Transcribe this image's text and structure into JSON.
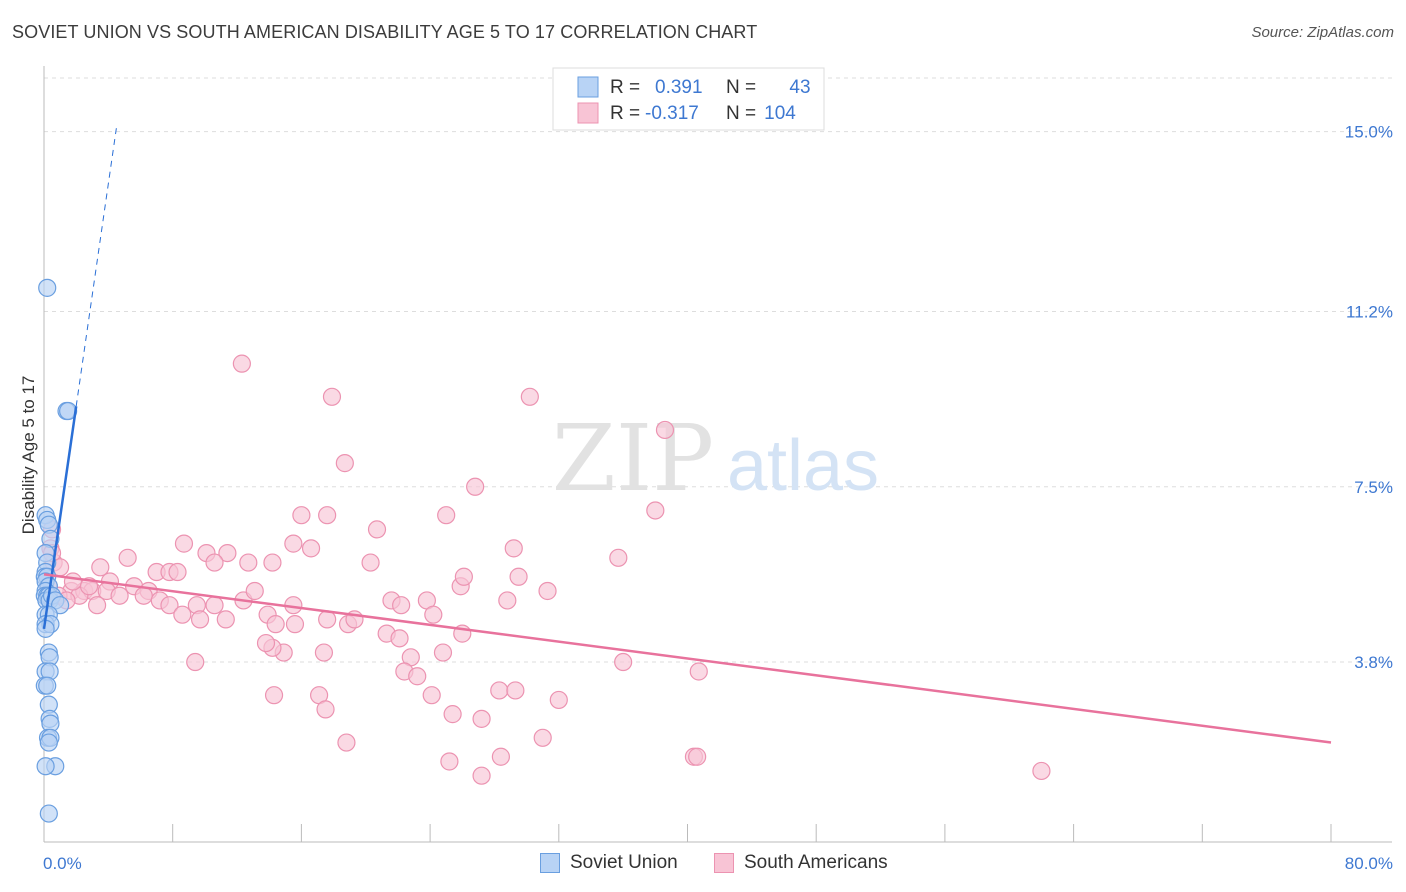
{
  "title": "SOVIET UNION VS SOUTH AMERICAN DISABILITY AGE 5 TO 17 CORRELATION CHART",
  "source": "Source: ZipAtlas.com",
  "watermark": {
    "zip": "ZIP",
    "atlas": "atlas"
  },
  "colors": {
    "blue_fill": "#b8d3f5",
    "blue_stroke": "#6a9fe0",
    "blue_line": "#2a6fd6",
    "pink_fill": "#f8c4d5",
    "pink_stroke": "#ec93b1",
    "pink_line": "#e8729c",
    "axis_text": "#3e78d1",
    "grid": "#dddddd"
  },
  "legend_top": {
    "rows": [
      {
        "r_label": "R =",
        "r_value": "0.391",
        "n_label": "N =",
        "n_value": "43"
      },
      {
        "r_label": "R =",
        "r_value": "-0.317",
        "n_label": "N =",
        "n_value": "104"
      }
    ]
  },
  "legend_bottom": [
    {
      "label": "Soviet Union"
    },
    {
      "label": "South Americans"
    }
  ],
  "chart_data": {
    "type": "scatter",
    "title": "SOVIET UNION VS SOUTH AMERICAN DISABILITY AGE 5 TO 17 CORRELATION CHART",
    "xlabel": "",
    "ylabel": "Disability Age 5 to 17",
    "xlim": [
      0,
      80
    ],
    "ylim": [
      0,
      16.3
    ],
    "x_tick_labels": [
      "0.0%",
      "80.0%"
    ],
    "y_ticks": [
      3.8,
      7.5,
      11.2,
      15.0
    ],
    "y_tick_labels": [
      "3.8%",
      "7.5%",
      "11.2%",
      "15.0%"
    ],
    "grid": "horizontal dashed",
    "legend_position": "top-center",
    "series": [
      {
        "name": "Soviet Union",
        "trend": {
          "x0": 0.0,
          "y0": 4.5,
          "x1": 2.0,
          "y1": 9.2,
          "dashed_to_x": 4.5
        },
        "points": [
          [
            0.2,
            11.7
          ],
          [
            1.4,
            9.1
          ],
          [
            1.5,
            9.1
          ],
          [
            0.1,
            6.9
          ],
          [
            0.2,
            6.8
          ],
          [
            0.3,
            6.7
          ],
          [
            0.4,
            6.4
          ],
          [
            0.1,
            6.1
          ],
          [
            0.2,
            5.9
          ],
          [
            0.1,
            5.7
          ],
          [
            0.05,
            5.6
          ],
          [
            0.2,
            5.6
          ],
          [
            0.1,
            5.5
          ],
          [
            0.3,
            5.4
          ],
          [
            0.1,
            5.3
          ],
          [
            0.05,
            5.2
          ],
          [
            0.2,
            5.2
          ],
          [
            0.3,
            5.2
          ],
          [
            0.15,
            5.1
          ],
          [
            0.35,
            5.1
          ],
          [
            0.5,
            5.2
          ],
          [
            0.7,
            5.1
          ],
          [
            1.0,
            5.0
          ],
          [
            0.1,
            4.8
          ],
          [
            0.3,
            4.8
          ],
          [
            0.1,
            4.6
          ],
          [
            0.4,
            4.6
          ],
          [
            0.1,
            4.5
          ],
          [
            0.3,
            4.0
          ],
          [
            0.35,
            3.9
          ],
          [
            0.1,
            3.6
          ],
          [
            0.35,
            3.6
          ],
          [
            0.05,
            3.3
          ],
          [
            0.2,
            3.3
          ],
          [
            0.3,
            2.9
          ],
          [
            0.35,
            2.6
          ],
          [
            0.4,
            2.5
          ],
          [
            0.25,
            2.2
          ],
          [
            0.4,
            2.2
          ],
          [
            0.3,
            2.1
          ],
          [
            0.7,
            1.6
          ],
          [
            0.1,
            1.6
          ],
          [
            0.3,
            0.6
          ]
        ]
      },
      {
        "name": "South Americans",
        "trend": {
          "x0": 0.0,
          "y0": 5.65,
          "x1": 80.0,
          "y1": 2.1
        },
        "points": [
          [
            12.3,
            10.1
          ],
          [
            17.9,
            9.4
          ],
          [
            30.2,
            9.4
          ],
          [
            38.6,
            8.7
          ],
          [
            18.7,
            8.0
          ],
          [
            26.8,
            7.5
          ],
          [
            25.0,
            6.9
          ],
          [
            38.0,
            7.0
          ],
          [
            16.0,
            6.9
          ],
          [
            17.6,
            6.9
          ],
          [
            20.7,
            6.6
          ],
          [
            0.5,
            6.6
          ],
          [
            0.4,
            6.2
          ],
          [
            8.7,
            6.3
          ],
          [
            15.5,
            6.3
          ],
          [
            10.1,
            6.1
          ],
          [
            11.4,
            6.1
          ],
          [
            16.6,
            6.2
          ],
          [
            29.2,
            6.2
          ],
          [
            35.7,
            6.0
          ],
          [
            5.2,
            6.0
          ],
          [
            0.6,
            5.9
          ],
          [
            10.6,
            5.9
          ],
          [
            12.7,
            5.9
          ],
          [
            14.2,
            5.9
          ],
          [
            20.3,
            5.9
          ],
          [
            3.5,
            5.8
          ],
          [
            7.0,
            5.7
          ],
          [
            7.8,
            5.7
          ],
          [
            8.3,
            5.7
          ],
          [
            4.1,
            5.5
          ],
          [
            5.6,
            5.4
          ],
          [
            6.5,
            5.3
          ],
          [
            1.7,
            5.3
          ],
          [
            2.5,
            5.3
          ],
          [
            3.0,
            5.3
          ],
          [
            3.9,
            5.3
          ],
          [
            2.2,
            5.2
          ],
          [
            0.9,
            5.2
          ],
          [
            1.4,
            5.1
          ],
          [
            4.7,
            5.2
          ],
          [
            6.2,
            5.2
          ],
          [
            7.2,
            5.1
          ],
          [
            9.5,
            5.0
          ],
          [
            10.6,
            5.0
          ],
          [
            12.4,
            5.1
          ],
          [
            13.1,
            5.3
          ],
          [
            15.5,
            5.0
          ],
          [
            21.6,
            5.1
          ],
          [
            22.2,
            5.0
          ],
          [
            23.8,
            5.1
          ],
          [
            25.9,
            5.4
          ],
          [
            29.5,
            5.6
          ],
          [
            31.3,
            5.3
          ],
          [
            26.1,
            5.6
          ],
          [
            28.8,
            5.1
          ],
          [
            3.3,
            5.0
          ],
          [
            7.8,
            5.0
          ],
          [
            8.6,
            4.8
          ],
          [
            9.7,
            4.7
          ],
          [
            11.3,
            4.7
          ],
          [
            13.9,
            4.8
          ],
          [
            14.4,
            4.6
          ],
          [
            15.6,
            4.6
          ],
          [
            17.6,
            4.7
          ],
          [
            18.9,
            4.6
          ],
          [
            19.3,
            4.7
          ],
          [
            21.3,
            4.4
          ],
          [
            22.1,
            4.3
          ],
          [
            24.2,
            4.8
          ],
          [
            26.0,
            4.4
          ],
          [
            24.8,
            4.0
          ],
          [
            22.8,
            3.9
          ],
          [
            17.4,
            4.0
          ],
          [
            14.9,
            4.0
          ],
          [
            14.2,
            4.1
          ],
          [
            13.8,
            4.2
          ],
          [
            9.4,
            3.8
          ],
          [
            22.4,
            3.6
          ],
          [
            23.2,
            3.5
          ],
          [
            24.1,
            3.1
          ],
          [
            28.3,
            3.2
          ],
          [
            29.3,
            3.2
          ],
          [
            32.0,
            3.0
          ],
          [
            36.0,
            3.8
          ],
          [
            40.7,
            3.6
          ],
          [
            14.3,
            3.1
          ],
          [
            17.1,
            3.1
          ],
          [
            17.5,
            2.8
          ],
          [
            25.4,
            2.7
          ],
          [
            27.2,
            2.6
          ],
          [
            18.8,
            2.1
          ],
          [
            31.0,
            2.2
          ],
          [
            25.2,
            1.7
          ],
          [
            28.4,
            1.8
          ],
          [
            40.4,
            1.8
          ],
          [
            40.6,
            1.8
          ],
          [
            27.2,
            1.4
          ],
          [
            62.0,
            1.5
          ],
          [
            0.5,
            6.1
          ],
          [
            1.8,
            5.5
          ],
          [
            0.3,
            5.4
          ],
          [
            1.0,
            5.8
          ],
          [
            2.8,
            5.4
          ]
        ]
      }
    ]
  }
}
